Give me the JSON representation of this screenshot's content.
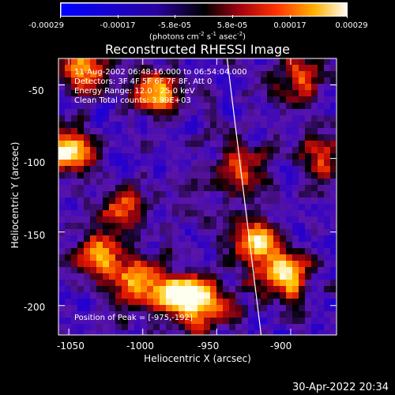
{
  "colorbar": {
    "ticks": [
      "-0.00029",
      "-0.00017",
      "-5.8e-05",
      "5.8e-05",
      "0.00017",
      "0.00029"
    ],
    "units_main": "(photons cm",
    "units_sup1": "-2",
    "units_mid1": " s",
    "units_sup2": "-1",
    "units_mid2": " asec",
    "units_sup3": "-2",
    "units_end": ")"
  },
  "title": "Reconstructed RHESSI Image",
  "info": {
    "time": "11-Aug-2002 06:48:16.000 to 06:54:04.000",
    "detectors": "Detectors: 3F 4F 5F 6F 7F 8F, Att 0",
    "energy": "Energy Range: 12.0 - 25.0 keV",
    "clean": "Clean     Total counts: 3.99E+03",
    "peak": "Position of Peak = [-975,-192]"
  },
  "chart_data": {
    "type": "heatmap",
    "title": "Reconstructed RHESSI Image",
    "xlabel": "Heliocentric X (arcsec)",
    "ylabel": "Heliocentric Y (arcsec)",
    "xlim": [
      -1057,
      -869
    ],
    "ylim": [
      -220,
      -32
    ],
    "x_ticks": [
      "-1050",
      "-1000",
      "-950",
      "-900"
    ],
    "y_ticks": [
      "-50",
      "-100",
      "-150",
      "-200"
    ],
    "x_tick_values": [
      -1050,
      -1000,
      -950,
      -900
    ],
    "y_tick_values": [
      -50,
      -100,
      -150,
      -200
    ],
    "color_range": [
      -0.00029,
      0.00029
    ],
    "peak": [
      -975,
      -192
    ],
    "limb_line": [
      [
        -943,
        -32
      ],
      [
        -920,
        -220
      ]
    ],
    "hot_spots": [
      {
        "x": -975,
        "y": -192,
        "strength": 1.0
      },
      {
        "x": -905,
        "y": -180,
        "strength": 0.9
      },
      {
        "x": -925,
        "y": -155,
        "strength": 0.75
      },
      {
        "x": -1050,
        "y": -95,
        "strength": 0.85
      },
      {
        "x": -1030,
        "y": -165,
        "strength": 0.75
      },
      {
        "x": -1005,
        "y": -185,
        "strength": 0.7
      },
      {
        "x": -990,
        "y": -55,
        "strength": 0.75
      },
      {
        "x": -1040,
        "y": -40,
        "strength": 0.65
      },
      {
        "x": -935,
        "y": -110,
        "strength": 0.6
      },
      {
        "x": -880,
        "y": -100,
        "strength": 0.55
      },
      {
        "x": -955,
        "y": -200,
        "strength": 0.7
      },
      {
        "x": -1015,
        "y": -135,
        "strength": 0.55
      },
      {
        "x": -895,
        "y": -45,
        "strength": 0.5
      }
    ]
  },
  "stamp": "30-Apr-2022 20:34"
}
